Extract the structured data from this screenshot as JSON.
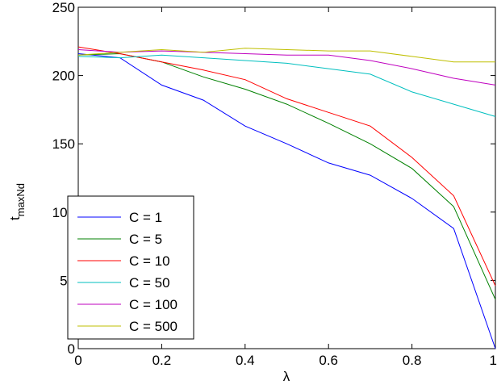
{
  "chart_data": {
    "type": "line",
    "title": "",
    "xlabel": "λ",
    "ylabel_main": "t",
    "ylabel_sub": "maxNd",
    "xlim": [
      0,
      1
    ],
    "ylim": [
      0,
      250
    ],
    "xticks": [
      0,
      0.2,
      0.4,
      0.6,
      0.8,
      1
    ],
    "xtick_labels": [
      "0",
      "0.2",
      "0.4",
      "0.6",
      "0.8",
      "1"
    ],
    "yticks": [
      0,
      50,
      100,
      150,
      200,
      250
    ],
    "ytick_labels": [
      "0",
      "50",
      "100",
      "150",
      "200",
      "250"
    ],
    "grid": false,
    "legend_position": "bottom-left",
    "x": [
      0,
      0.1,
      0.2,
      0.3,
      0.4,
      0.5,
      0.6,
      0.7,
      0.8,
      0.9,
      1.0
    ],
    "series": [
      {
        "name": "C = 1",
        "color": "#0000ff",
        "values": [
          216,
          213,
          193,
          182,
          163,
          150,
          136,
          127,
          110,
          88,
          0
        ]
      },
      {
        "name": "C = 5",
        "color": "#008000",
        "values": [
          215,
          216,
          210,
          199,
          190,
          179,
          165,
          150,
          132,
          104,
          36
        ]
      },
      {
        "name": "C = 10",
        "color": "#ff0000",
        "values": [
          221,
          216,
          210,
          204,
          197,
          183,
          173,
          163,
          140,
          112,
          46
        ]
      },
      {
        "name": "C = 50",
        "color": "#00bfbf",
        "values": [
          214,
          213,
          215,
          213,
          211,
          209,
          205,
          201,
          188,
          179,
          170
        ]
      },
      {
        "name": "C = 100",
        "color": "#bf00bf",
        "values": [
          219,
          217,
          218,
          217,
          216,
          215,
          215,
          211,
          205,
          198,
          193
        ]
      },
      {
        "name": "C = 500",
        "color": "#bfbf00",
        "values": [
          215,
          217,
          219,
          217,
          220,
          219,
          218,
          218,
          214,
          210,
          210
        ]
      }
    ]
  }
}
